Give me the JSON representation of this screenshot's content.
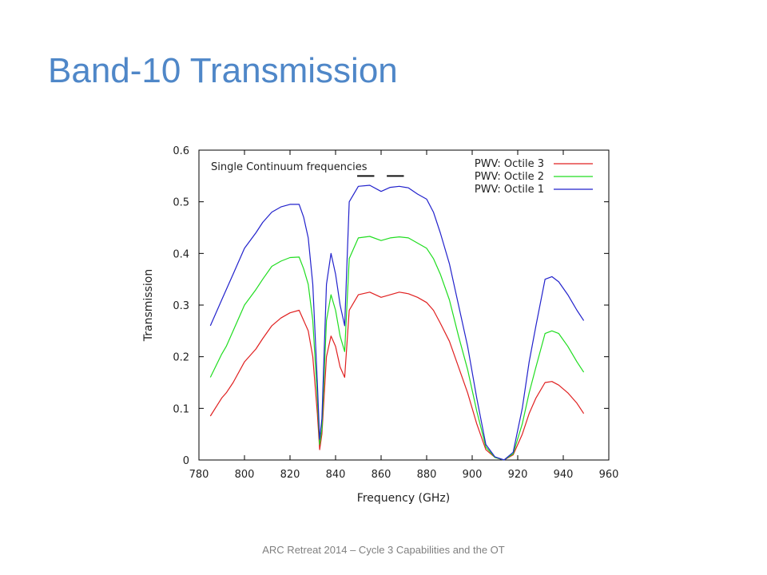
{
  "slide": {
    "title": "Band-10 Transmission",
    "footer": "ARC Retreat 2014 – Cycle 3 Capabilities and the OT"
  },
  "chart_data": {
    "type": "line",
    "title": "",
    "xlabel": "Frequency (GHz)",
    "ylabel": "Transmission",
    "xlim": [
      780,
      960
    ],
    "ylim": [
      0,
      0.6
    ],
    "xticks": [
      780,
      800,
      820,
      840,
      860,
      880,
      900,
      920,
      940,
      960
    ],
    "yticks": [
      0,
      0.1,
      0.2,
      0.3,
      0.4,
      0.5,
      0.6
    ],
    "ytick_labels": [
      "0",
      "0.1",
      "0.2",
      "0.3",
      "0.4",
      "0.5",
      "0.6"
    ],
    "grid": false,
    "legend_position": "top-right",
    "annotation": {
      "text": "Single Continuum frequencies",
      "ranges": [
        [
          849.5,
          857.0
        ],
        [
          862.5,
          870.0
        ]
      ],
      "y": 0.55
    },
    "x": [
      785,
      790,
      792,
      795,
      800,
      805,
      808,
      812,
      816,
      820,
      824,
      826,
      828,
      830,
      832,
      833,
      834,
      836,
      838,
      840,
      842,
      844,
      846,
      850,
      855,
      860,
      864,
      868,
      872,
      876,
      880,
      883,
      886,
      890,
      894,
      898,
      902,
      906,
      910,
      914,
      918,
      922,
      925,
      928,
      932,
      935,
      938,
      942,
      946,
      949
    ],
    "series": [
      {
        "name": "PWV: Octile 3",
        "color": "#e02020",
        "values": [
          0.085,
          0.12,
          0.13,
          0.15,
          0.19,
          0.215,
          0.235,
          0.26,
          0.275,
          0.285,
          0.29,
          0.27,
          0.25,
          0.2,
          0.09,
          0.02,
          0.05,
          0.2,
          0.24,
          0.22,
          0.18,
          0.16,
          0.29,
          0.32,
          0.325,
          0.315,
          0.32,
          0.325,
          0.322,
          0.315,
          0.305,
          0.29,
          0.265,
          0.23,
          0.18,
          0.13,
          0.07,
          0.02,
          0.005,
          0.0,
          0.01,
          0.05,
          0.09,
          0.12,
          0.15,
          0.152,
          0.145,
          0.13,
          0.11,
          0.09
        ]
      },
      {
        "name": "PWV: Octile 2",
        "color": "#20dd20",
        "values": [
          0.16,
          0.205,
          0.22,
          0.25,
          0.3,
          0.33,
          0.35,
          0.375,
          0.385,
          0.392,
          0.393,
          0.37,
          0.34,
          0.27,
          0.12,
          0.03,
          0.06,
          0.27,
          0.32,
          0.29,
          0.24,
          0.21,
          0.39,
          0.43,
          0.433,
          0.425,
          0.43,
          0.432,
          0.43,
          0.42,
          0.41,
          0.39,
          0.36,
          0.31,
          0.24,
          0.175,
          0.095,
          0.025,
          0.005,
          0.0,
          0.012,
          0.07,
          0.13,
          0.18,
          0.245,
          0.25,
          0.245,
          0.22,
          0.19,
          0.17
        ]
      },
      {
        "name": "PWV: Octile 1",
        "color": "#2222cc",
        "values": [
          0.26,
          0.31,
          0.33,
          0.36,
          0.41,
          0.44,
          0.46,
          0.48,
          0.49,
          0.495,
          0.495,
          0.47,
          0.43,
          0.34,
          0.15,
          0.04,
          0.08,
          0.34,
          0.4,
          0.36,
          0.3,
          0.26,
          0.5,
          0.53,
          0.532,
          0.52,
          0.528,
          0.53,
          0.527,
          0.515,
          0.505,
          0.48,
          0.44,
          0.38,
          0.3,
          0.22,
          0.12,
          0.03,
          0.006,
          0.0,
          0.015,
          0.1,
          0.19,
          0.26,
          0.35,
          0.355,
          0.345,
          0.32,
          0.29,
          0.27
        ]
      }
    ]
  }
}
